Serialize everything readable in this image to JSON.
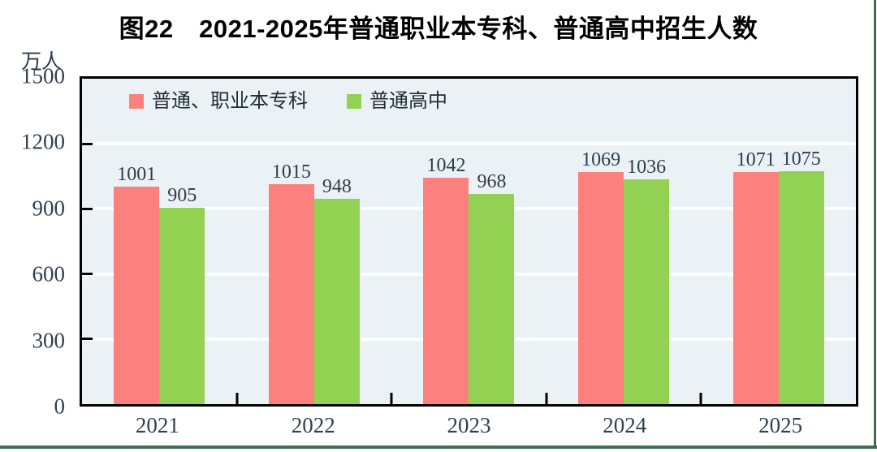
{
  "chart": {
    "title": "图22　2021-2025年普通职业本专科、普通高中招生人数",
    "y_unit": "万人"
  },
  "chart_data": {
    "type": "bar",
    "title": "图22　2021-2025年普通职业本专科、普通高中招生人数",
    "y_unit": "万人",
    "categories": [
      "2021",
      "2022",
      "2023",
      "2024",
      "2025"
    ],
    "series": [
      {
        "name": "普通、职业本专科",
        "color": "#fc807e",
        "values": [
          1001,
          1015,
          1042,
          1069,
          1071
        ]
      },
      {
        "name": "普通高中",
        "color": "#93d152",
        "values": [
          905,
          948,
          968,
          1036,
          1075
        ]
      }
    ],
    "ylim": [
      0,
      1500
    ],
    "yticks": [
      0,
      300,
      600,
      900,
      1200,
      1500
    ],
    "grid": "horizontal-white-lines",
    "legend_position": "top-left-inside-plot",
    "bar_value_labels": true
  },
  "colors": {
    "series1": "#fc807e",
    "series2": "#93d152",
    "plot_background": "#ebf2f6",
    "gridline": "#ffffff",
    "plot_border": "#000000",
    "axis_text": "#31404e",
    "page_frame": "#3c6e4f"
  }
}
